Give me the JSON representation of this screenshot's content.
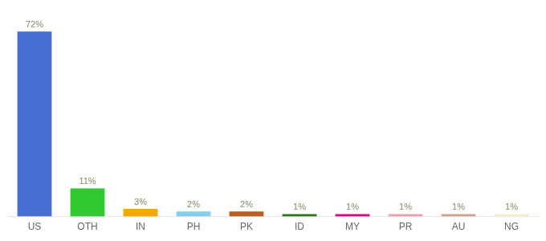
{
  "chart_data": {
    "type": "bar",
    "categories": [
      "US",
      "OTH",
      "IN",
      "PH",
      "PK",
      "ID",
      "MY",
      "PR",
      "AU",
      "NG"
    ],
    "values": [
      72,
      11,
      3,
      2,
      2,
      1,
      1,
      1,
      1,
      1
    ],
    "value_labels": [
      "72%",
      "11%",
      "3%",
      "2%",
      "2%",
      "1%",
      "1%",
      "1%",
      "1%",
      "1%"
    ],
    "colors": [
      "#4a6fd4",
      "#32c832",
      "#f5a800",
      "#87ceeb",
      "#b85c20",
      "#2a7a1a",
      "#e8007c",
      "#f0a0b0",
      "#d4a090",
      "#f0eec8"
    ],
    "ylim": [
      0,
      78
    ],
    "grid": false,
    "data_labels": true,
    "tick_labels": "x"
  }
}
